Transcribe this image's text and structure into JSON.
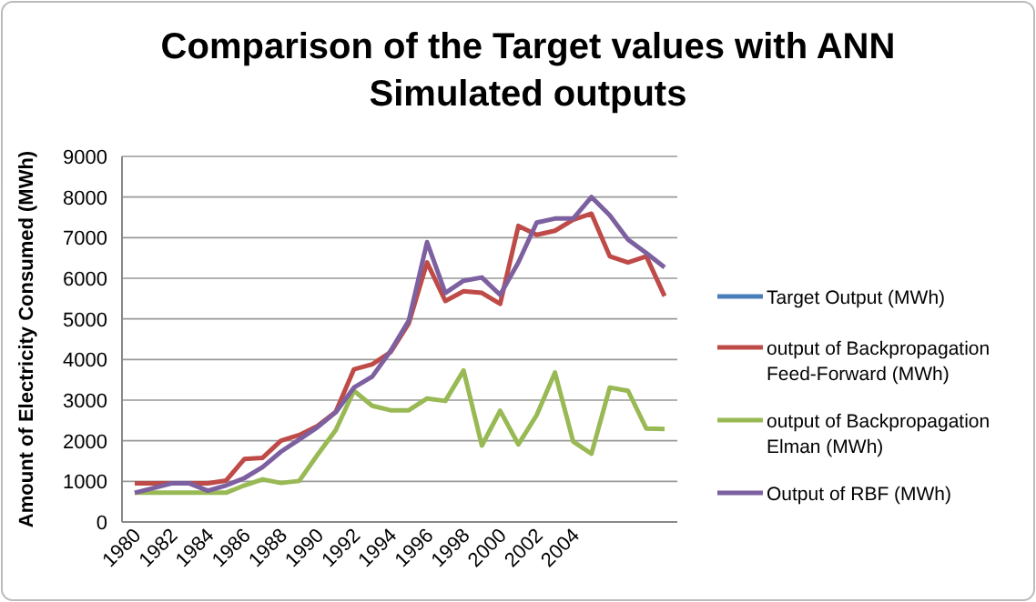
{
  "chart_data": {
    "type": "line",
    "title": "Comparison of the Target values with ANN Simulated outputs",
    "ylabel": "Amount of Electricity Consumed (MWh)",
    "categories": [
      "1980",
      null,
      "1982",
      null,
      "1984",
      null,
      "1986",
      null,
      "1988",
      null,
      "1990",
      null,
      "1992",
      null,
      "1994",
      null,
      "1996",
      null,
      "1998",
      null,
      "2000",
      null,
      "2002",
      null,
      "2004",
      null,
      null,
      null,
      null,
      null
    ],
    "ylim": [
      0,
      9000
    ],
    "yticks": [
      0,
      1000,
      2000,
      3000,
      4000,
      5000,
      6000,
      7000,
      8000,
      9000
    ],
    "grid": "y",
    "legend": "right",
    "series": [
      {
        "name": "Target Output (MWh)",
        "color": "#4a7ebb",
        "values": [
          null,
          null,
          null,
          null,
          null,
          null,
          null,
          null,
          null,
          null,
          null,
          null,
          null,
          null,
          null,
          null,
          null,
          null,
          null,
          null,
          null,
          null,
          null,
          null,
          null,
          null,
          null,
          null,
          null,
          null
        ]
      },
      {
        "name": "output of Backpropagation Feed-Forward (MWh)",
        "color": "#be4b48",
        "values": [
          950,
          950,
          950,
          950,
          950,
          1020,
          1550,
          1580,
          2000,
          2140,
          2360,
          2710,
          3760,
          3880,
          4180,
          4890,
          6390,
          5440,
          5680,
          5640,
          5370,
          7290,
          7070,
          7170,
          7440,
          7590,
          6540,
          6390,
          6540,
          5560
        ]
      },
      {
        "name": "output of Backpropagation Elman (MWh)",
        "color": "#98b954",
        "values": [
          720,
          720,
          720,
          720,
          720,
          720,
          900,
          1050,
          960,
          1010,
          1650,
          2260,
          3230,
          2860,
          2750,
          2750,
          3040,
          2980,
          3730,
          1880,
          2740,
          1910,
          2630,
          3680,
          1980,
          1680,
          3310,
          3230,
          2300,
          2290
        ]
      },
      {
        "name": "Output of RBF (MWh)",
        "color": "#7d60a0",
        "values": [
          720,
          830,
          950,
          950,
          770,
          900,
          1080,
          1350,
          1730,
          2030,
          2330,
          2700,
          3310,
          3580,
          4210,
          4960,
          6890,
          5640,
          5940,
          6020,
          5590,
          6390,
          7370,
          7470,
          7470,
          8000,
          7550,
          6950,
          6620,
          6270
        ]
      }
    ]
  }
}
